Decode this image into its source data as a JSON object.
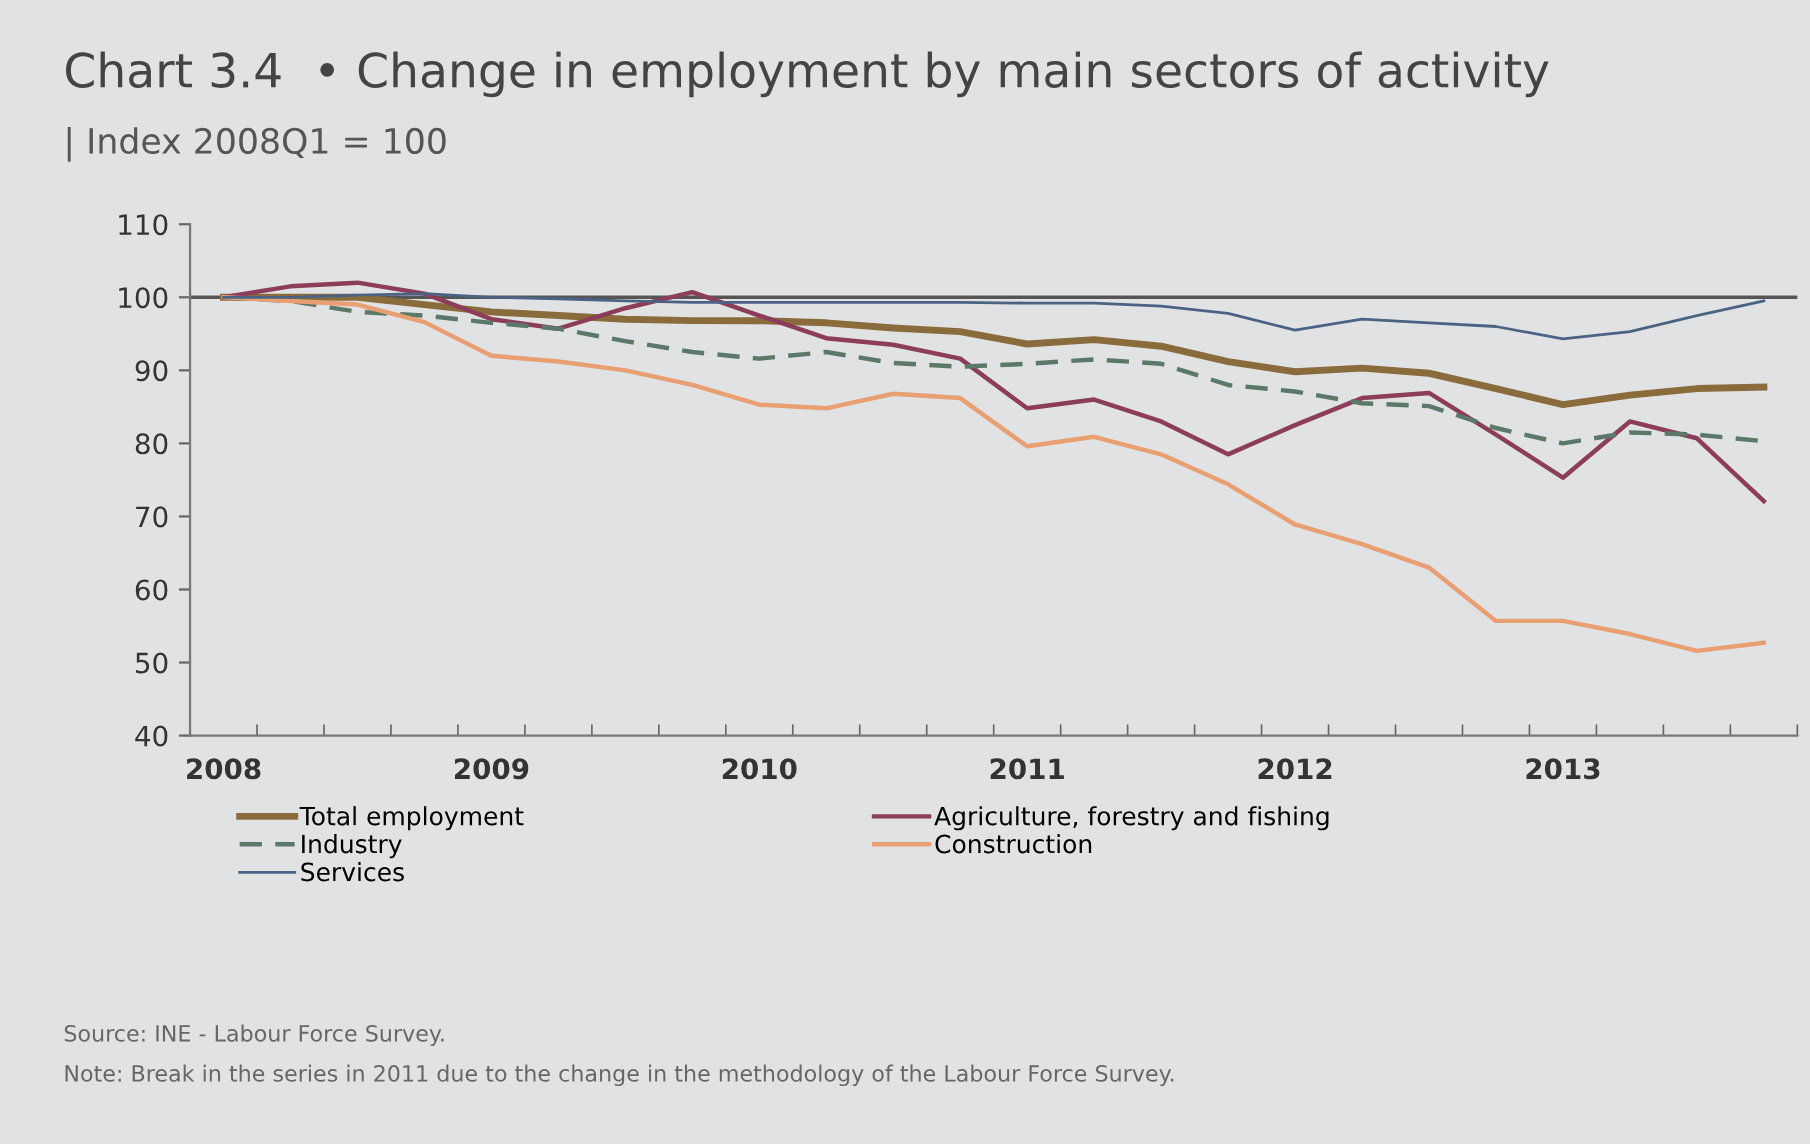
{
  "chart_data": {
    "type": "line",
    "title": "Chart 3.4  • Change in employment by main sectors of activity",
    "subtitle": "| Index 2008Q1 = 100",
    "categories": [
      "2008",
      null,
      null,
      null,
      "2009",
      null,
      null,
      null,
      "2010",
      null,
      null,
      null,
      "2011",
      null,
      null,
      null,
      "2012",
      null,
      null,
      null,
      "2013",
      null,
      null,
      null
    ],
    "series": [
      {
        "name": "Total employment",
        "color": "#8a6b3c",
        "line_style": "solid",
        "values": [
          100,
          100,
          100,
          99,
          98,
          97.5,
          97,
          96.8,
          96.8,
          96.5,
          95.8,
          95.3,
          93.6,
          94.2,
          93.3,
          91.2,
          89.8,
          90.3,
          89.6,
          87.5,
          85.3,
          86.6,
          87.5,
          87.7
        ]
      },
      {
        "name": "Agriculture, forestry and fishing",
        "color": "#8c3d5a",
        "line_style": "solid",
        "values": [
          100,
          101.5,
          102,
          100.5,
          97,
          95.7,
          98.5,
          100.7,
          97.5,
          94.4,
          93.5,
          91.6,
          84.8,
          86,
          83,
          78.5,
          82.5,
          86.2,
          86.9,
          81.2,
          75.3,
          83,
          80.7,
          72.1
        ]
      },
      {
        "name": "Industry",
        "color": "#5b7868",
        "line_style": "dashed",
        "values": [
          100,
          99.5,
          98,
          97.5,
          96.5,
          95.7,
          94,
          92.5,
          91.6,
          92.5,
          91,
          90.5,
          90.9,
          91.5,
          90.9,
          88,
          87.1,
          85.5,
          85.1,
          82.1,
          80,
          81.5,
          81.2,
          80.3
        ]
      },
      {
        "name": "Construction",
        "color": "#e89f72",
        "line_style": "solid",
        "values": [
          100,
          99.5,
          99,
          96.6,
          92,
          91.2,
          90,
          88,
          85.3,
          84.8,
          86.8,
          86.2,
          79.6,
          80.9,
          78.5,
          74.4,
          68.9,
          66.2,
          63,
          55.7,
          55.7,
          53.9,
          51.6,
          52.7
        ]
      },
      {
        "name": "Services",
        "color": "#4b6382",
        "line_style": "solid",
        "values": [
          100,
          100,
          100.3,
          100.5,
          100,
          99.8,
          99.5,
          99.3,
          99.3,
          99.3,
          99.3,
          99.3,
          99.2,
          99.2,
          98.8,
          97.8,
          95.5,
          97,
          96.5,
          96,
          94.3,
          95.3,
          97.5,
          99.5
        ]
      }
    ],
    "ylim": [
      40,
      110
    ],
    "yticks": [
      40,
      50,
      60,
      70,
      80,
      90,
      100,
      110
    ],
    "ref_lines": [
      {
        "axis": "y",
        "value": 100,
        "color": "#555555"
      }
    ],
    "grid": false,
    "legend": "bottom",
    "marker": "none",
    "annotations": [
      "Source: INE - Labour Force Survey.",
      "Note: Break in the series in 2011 due to the change in the methodology of the Labour Force Survey."
    ]
  }
}
